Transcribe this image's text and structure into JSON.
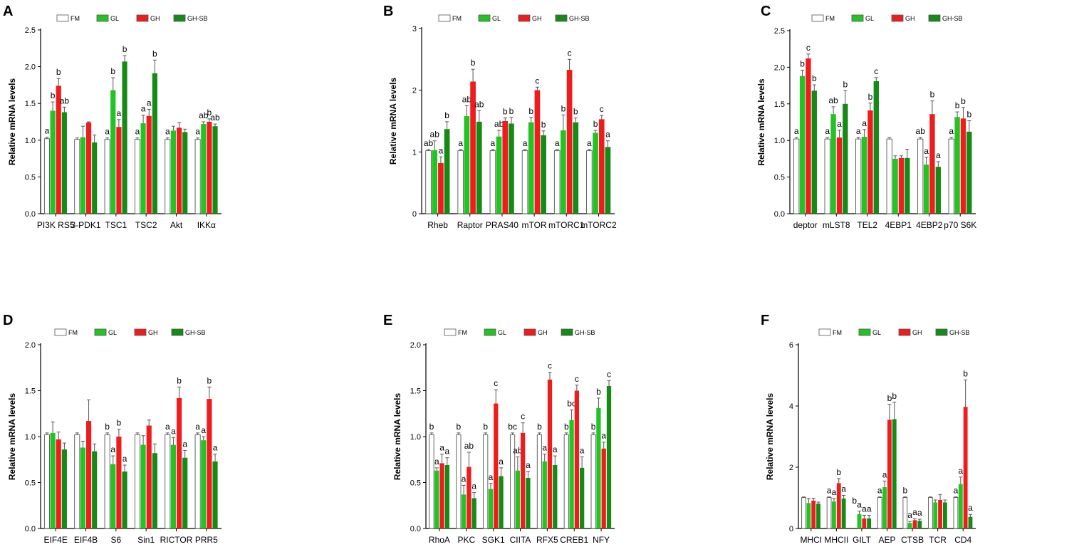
{
  "colors": {
    "FM": "#ffffff",
    "GL": "#22c322",
    "GH": "#ee1c1c",
    "GH-SB": "#158a15",
    "edge": "#555555"
  },
  "legend": [
    "FM",
    "GL",
    "GH",
    "GH-SB"
  ],
  "chart_data": [
    {
      "panel": "A",
      "type": "bar",
      "ylabel": "Relative mRNA levels",
      "ylim": [
        0,
        2.5
      ],
      "yticks": [
        "0.0",
        "0.5",
        "1.0",
        "1.5",
        "2.0",
        "2.5"
      ],
      "ytick_values": [
        0,
        0.5,
        1.0,
        1.5,
        2.0,
        2.5
      ],
      "categories": [
        "PI3K RS5",
        "3-PDK1",
        "TSC1",
        "TSC2",
        "Akt",
        "IKKα"
      ],
      "series": [
        {
          "name": "FM",
          "values": [
            1.02,
            1.01,
            1.01,
            1.01,
            1.01,
            1.01
          ],
          "errors": [
            0.02,
            0.02,
            0.02,
            0.02,
            0.02,
            0.02
          ],
          "sig": [
            "a",
            "",
            "a",
            "a",
            "a",
            "a"
          ]
        },
        {
          "name": "GL",
          "values": [
            1.4,
            1.04,
            1.68,
            1.23,
            1.13,
            1.22
          ],
          "errors": [
            0.12,
            0.15,
            0.17,
            0.11,
            0.06,
            0.03
          ],
          "sig": [
            "b",
            "",
            "b",
            "a",
            "",
            "ab"
          ]
        },
        {
          "name": "GH",
          "values": [
            1.74,
            1.24,
            1.18,
            1.33,
            1.17,
            1.25
          ],
          "errors": [
            0.1,
            0.01,
            0.1,
            0.09,
            0.07,
            0.04
          ],
          "sig": [
            "b",
            "",
            "a",
            "a",
            "",
            "b"
          ]
        },
        {
          "name": "GH-SB",
          "values": [
            1.38,
            0.97,
            2.07,
            1.91,
            1.11,
            1.19
          ],
          "errors": [
            0.07,
            0.1,
            0.08,
            0.18,
            0.04,
            0.03
          ],
          "sig": [
            "ab",
            "",
            "b",
            "b",
            "",
            "ab"
          ]
        }
      ]
    },
    {
      "panel": "B",
      "type": "bar",
      "ylabel": "Relative mRNA levels",
      "ylim": [
        0,
        3
      ],
      "yticks": [
        "0",
        "1",
        "2",
        "3"
      ],
      "ytick_values": [
        0,
        1,
        2,
        3
      ],
      "categories": [
        "Rheb",
        "Raptor",
        "PRAS40",
        "mTOR",
        "mTORC1",
        "mTORC2"
      ],
      "series": [
        {
          "name": "FM",
          "values": [
            1.02,
            1.02,
            1.02,
            1.02,
            1.02,
            1.02
          ],
          "errors": [
            0.02,
            0.02,
            0.02,
            0.02,
            0.02,
            0.02
          ],
          "sig": [
            "ab",
            "a",
            "a",
            "a",
            "a",
            "a"
          ]
        },
        {
          "name": "GL",
          "values": [
            1.03,
            1.58,
            1.25,
            1.48,
            1.35,
            1.31
          ],
          "errors": [
            0.15,
            0.17,
            0.1,
            0.08,
            0.25,
            0.04
          ],
          "sig": [
            "ab",
            "ab",
            "ab",
            "b",
            "b",
            "b"
          ]
        },
        {
          "name": "GH",
          "values": [
            0.82,
            2.14,
            1.5,
            2.0,
            2.33,
            1.53
          ],
          "errors": [
            0.1,
            0.2,
            0.05,
            0.05,
            0.17,
            0.06
          ],
          "sig": [
            "a",
            "b",
            "b",
            "c",
            "c",
            "c"
          ]
        },
        {
          "name": "GH-SB",
          "values": [
            1.37,
            1.49,
            1.46,
            1.27,
            1.48,
            1.08
          ],
          "errors": [
            0.12,
            0.18,
            0.1,
            0.07,
            0.07,
            0.1
          ],
          "sig": [
            "b",
            "ab",
            "b",
            "b",
            "b",
            "a"
          ]
        }
      ]
    },
    {
      "panel": "C",
      "type": "bar",
      "ylabel": "Relative mRNA levels",
      "ylim": [
        0,
        2.5
      ],
      "yticks": [
        "0.0",
        "0.5",
        "1.0",
        "1.5",
        "2.0",
        "2.5"
      ],
      "ytick_values": [
        0,
        0.5,
        1.0,
        1.5,
        2.0,
        2.5
      ],
      "categories": [
        "deptor",
        "mLST8",
        "TEL2",
        "4EBP1",
        "4EBP2",
        "p70 S6K"
      ],
      "series": [
        {
          "name": "FM",
          "values": [
            1.02,
            1.02,
            1.02,
            1.02,
            1.02,
            1.02
          ],
          "errors": [
            0.02,
            0.02,
            0.02,
            0.02,
            0.02,
            0.02
          ],
          "sig": [
            "a",
            "a",
            "a",
            "",
            "ab",
            "a"
          ]
        },
        {
          "name": "GL",
          "values": [
            1.88,
            1.36,
            1.05,
            0.75,
            0.67,
            1.32
          ],
          "errors": [
            0.08,
            0.1,
            0.1,
            0.04,
            0.1,
            0.07
          ],
          "sig": [
            "b",
            "ab",
            "a",
            "",
            "a",
            "b"
          ]
        },
        {
          "name": "GH",
          "values": [
            2.12,
            1.04,
            1.41,
            0.76,
            1.36,
            1.3
          ],
          "errors": [
            0.06,
            0.1,
            0.1,
            0.03,
            0.18,
            0.15
          ],
          "sig": [
            "c",
            "a",
            "b",
            "",
            "b",
            "b"
          ]
        },
        {
          "name": "GH-SB",
          "values": [
            1.68,
            1.5,
            1.81,
            0.76,
            0.64,
            1.12
          ],
          "errors": [
            0.08,
            0.18,
            0.05,
            0.12,
            0.07,
            0.15
          ],
          "sig": [
            "b",
            "b",
            "c",
            "",
            "a",
            "b"
          ]
        }
      ]
    },
    {
      "panel": "D",
      "type": "bar",
      "ylabel": "Relative mRNA levels",
      "ylim": [
        0,
        2.0
      ],
      "yticks": [
        "0.0",
        "0.5",
        "1.0",
        "1.5",
        "2.0"
      ],
      "ytick_values": [
        0,
        0.5,
        1.0,
        1.5,
        2.0
      ],
      "categories": [
        "EIF4E",
        "EIF4B",
        "S6",
        "Sin1",
        "RICTOR",
        "PRR5"
      ],
      "series": [
        {
          "name": "FM",
          "values": [
            1.02,
            1.02,
            1.02,
            1.02,
            1.02,
            1.02
          ],
          "errors": [
            0.02,
            0.02,
            0.02,
            0.02,
            0.02,
            0.02
          ],
          "sig": [
            "",
            "",
            "b",
            "",
            "a",
            "a"
          ]
        },
        {
          "name": "GL",
          "values": [
            1.04,
            0.88,
            0.7,
            0.91,
            0.91,
            0.96
          ],
          "errors": [
            0.12,
            0.07,
            0.09,
            0.1,
            0.08,
            0.04
          ],
          "sig": [
            "",
            "",
            "a",
            "",
            "a",
            "a"
          ]
        },
        {
          "name": "GH",
          "values": [
            0.97,
            1.17,
            1.0,
            1.12,
            1.42,
            1.41
          ],
          "errors": [
            0.08,
            0.23,
            0.08,
            0.06,
            0.12,
            0.13
          ],
          "sig": [
            "",
            "",
            "b",
            "",
            "b",
            "b"
          ]
        },
        {
          "name": "GH-SB",
          "values": [
            0.86,
            0.84,
            0.62,
            0.82,
            0.77,
            0.73
          ],
          "errors": [
            0.07,
            0.08,
            0.07,
            0.1,
            0.08,
            0.08
          ],
          "sig": [
            "",
            "",
            "a",
            "",
            "a",
            "a"
          ]
        }
      ]
    },
    {
      "panel": "E",
      "type": "bar",
      "ylabel": "Relative mRNA levels",
      "ylim": [
        0,
        2.0
      ],
      "yticks": [
        "0.0",
        "0.5",
        "1.0",
        "1.5",
        "2.0"
      ],
      "ytick_values": [
        0,
        0.5,
        1.0,
        1.5,
        2.0
      ],
      "categories": [
        "RhoA",
        "PKC",
        "SGK1",
        "CIITA",
        "RFX5",
        "CREB1",
        "NFY"
      ],
      "series": [
        {
          "name": "FM",
          "values": [
            1.02,
            1.02,
            1.02,
            1.02,
            1.02,
            1.02,
            1.02
          ],
          "errors": [
            0.02,
            0.02,
            0.02,
            0.02,
            0.02,
            0.02,
            0.02
          ],
          "sig": [
            "b",
            "b",
            "b",
            "bc",
            "b",
            "b",
            "b"
          ]
        },
        {
          "name": "GL",
          "values": [
            0.63,
            0.37,
            0.43,
            0.63,
            0.73,
            1.18,
            1.31
          ],
          "errors": [
            0.03,
            0.1,
            0.06,
            0.15,
            0.08,
            0.11,
            0.11
          ],
          "sig": [
            "a",
            "a",
            "a",
            "ab",
            "a",
            "bc",
            "b"
          ]
        },
        {
          "name": "GH",
          "values": [
            0.71,
            0.67,
            1.36,
            1.04,
            1.62,
            1.5,
            0.87
          ],
          "errors": [
            0.1,
            0.16,
            0.15,
            0.11,
            0.08,
            0.06,
            0.07
          ],
          "sig": [
            "a",
            "ab",
            "c",
            "c",
            "c",
            "c",
            "a"
          ]
        },
        {
          "name": "GH-SB",
          "values": [
            0.69,
            0.33,
            0.57,
            0.55,
            0.69,
            0.66,
            1.55
          ],
          "errors": [
            0.08,
            0.06,
            0.09,
            0.07,
            0.1,
            0.12,
            0.06
          ],
          "sig": [
            "a",
            "a",
            "a",
            "a",
            "a",
            "a",
            "c"
          ]
        }
      ]
    },
    {
      "panel": "F",
      "type": "bar",
      "ylabel": "Relative mRNA levels",
      "ylim": [
        0,
        6
      ],
      "yticks": [
        "0",
        "2",
        "4",
        "6"
      ],
      "ytick_values": [
        0,
        2,
        4,
        6
      ],
      "categories": [
        "MHCI",
        "MHCII",
        "GILT",
        "AEP",
        "CTSB",
        "TCR",
        "CD4"
      ],
      "series": [
        {
          "name": "FM",
          "values": [
            1.01,
            1.01,
            0.0,
            1.01,
            1.01,
            1.01,
            1.01
          ],
          "errors": [
            0.02,
            0.02,
            0.0,
            0.02,
            0.02,
            0.02,
            0.02
          ],
          "sig": [
            "",
            "a",
            "b",
            "a",
            "b",
            "",
            "a"
          ]
        },
        {
          "name": "GL",
          "values": [
            0.83,
            0.88,
            0.47,
            1.35,
            0.18,
            0.85,
            1.45
          ],
          "errors": [
            0.15,
            0.1,
            0.1,
            0.2,
            0.05,
            0.08,
            0.23
          ],
          "sig": [
            "",
            "a",
            "a",
            "a",
            "a",
            "",
            "a"
          ]
        },
        {
          "name": "GH",
          "values": [
            0.91,
            1.48,
            0.33,
            3.55,
            0.27,
            0.93,
            3.97
          ],
          "errors": [
            0.08,
            0.15,
            0.1,
            0.5,
            0.05,
            0.18,
            0.88
          ],
          "sig": [
            "",
            "b",
            "a",
            "b",
            "a",
            "",
            "b"
          ]
        },
        {
          "name": "GH-SB",
          "values": [
            0.81,
            0.98,
            0.33,
            3.57,
            0.25,
            0.85,
            0.38
          ],
          "errors": [
            0.05,
            0.1,
            0.1,
            0.55,
            0.05,
            0.08,
            0.08
          ],
          "sig": [
            "",
            "a",
            "a",
            "b",
            "a",
            "",
            "a"
          ]
        }
      ]
    }
  ]
}
